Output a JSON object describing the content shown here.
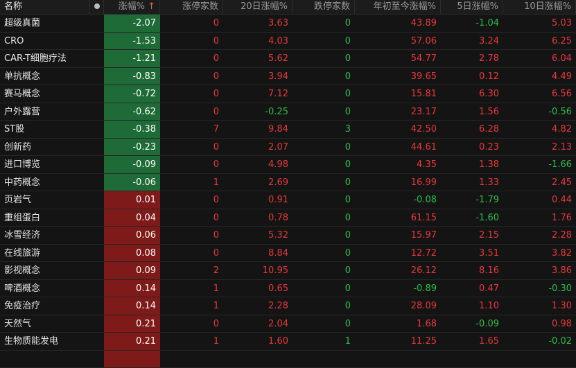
{
  "header": {
    "name": "名称",
    "change": "涨幅%",
    "sort_icon": "arrow-up-icon",
    "limit_up": "涨停家数",
    "d20": "20日涨幅%",
    "limit_down": "跌停家数",
    "ytd": "年初至今涨幅%",
    "d5": "5日涨幅%",
    "d10": "10日涨幅%"
  },
  "colors": {
    "up": "#e8383d",
    "down": "#2fbf4a",
    "neg_bg": "#1f6b38",
    "pos_bg": "#7f1a1a"
  },
  "rows": [
    [
      "超级真菌",
      "-2.07",
      "0",
      "3.63",
      "0",
      "43.89",
      "-1.04",
      "5.03"
    ],
    [
      "CRO",
      "-1.53",
      "0",
      "4.03",
      "0",
      "57.06",
      "3.24",
      "6.25"
    ],
    [
      "CAR-T细胞疗法",
      "-1.21",
      "0",
      "5.62",
      "0",
      "54.77",
      "2.78",
      "6.04"
    ],
    [
      "单抗概念",
      "-0.83",
      "0",
      "3.94",
      "0",
      "39.65",
      "0.12",
      "4.49"
    ],
    [
      "赛马概念",
      "-0.72",
      "0",
      "7.12",
      "0",
      "15.81",
      "6.30",
      "6.56"
    ],
    [
      "户外露营",
      "-0.62",
      "0",
      "-0.25",
      "0",
      "23.17",
      "1.56",
      "-0.56"
    ],
    [
      "ST股",
      "-0.38",
      "7",
      "9.84",
      "3",
      "42.50",
      "6.28",
      "4.82"
    ],
    [
      "创新药",
      "-0.23",
      "0",
      "2.07",
      "0",
      "44.61",
      "0.23",
      "2.13"
    ],
    [
      "进口博览",
      "-0.09",
      "0",
      "4.98",
      "0",
      "4.35",
      "1.38",
      "-1.66"
    ],
    [
      "中药概念",
      "-0.06",
      "1",
      "2.69",
      "0",
      "16.99",
      "1.33",
      "2.45"
    ],
    [
      "页岩气",
      "0.01",
      "0",
      "0.91",
      "0",
      "-0.08",
      "-1.79",
      "0.44"
    ],
    [
      "重组蛋白",
      "0.04",
      "0",
      "0.78",
      "0",
      "61.15",
      "-1.60",
      "1.76"
    ],
    [
      "冰雪经济",
      "0.06",
      "0",
      "5.32",
      "0",
      "15.97",
      "2.15",
      "2.28"
    ],
    [
      "在线旅游",
      "0.08",
      "0",
      "8.84",
      "0",
      "12.72",
      "3.51",
      "3.82"
    ],
    [
      "影视概念",
      "0.09",
      "2",
      "10.95",
      "0",
      "26.12",
      "8.16",
      "3.86"
    ],
    [
      "啤酒概念",
      "0.14",
      "1",
      "0.65",
      "0",
      "-0.89",
      "0.47",
      "-0.30"
    ],
    [
      "免疫治疗",
      "0.14",
      "1",
      "2.28",
      "0",
      "28.09",
      "1.10",
      "1.30"
    ],
    [
      "天然气",
      "0.21",
      "0",
      "2.04",
      "0",
      "1.68",
      "-0.09",
      "0.98"
    ],
    [
      "生物质能发电",
      "0.21",
      "1",
      "1.60",
      "1",
      "11.25",
      "1.65",
      "-0.02"
    ]
  ]
}
